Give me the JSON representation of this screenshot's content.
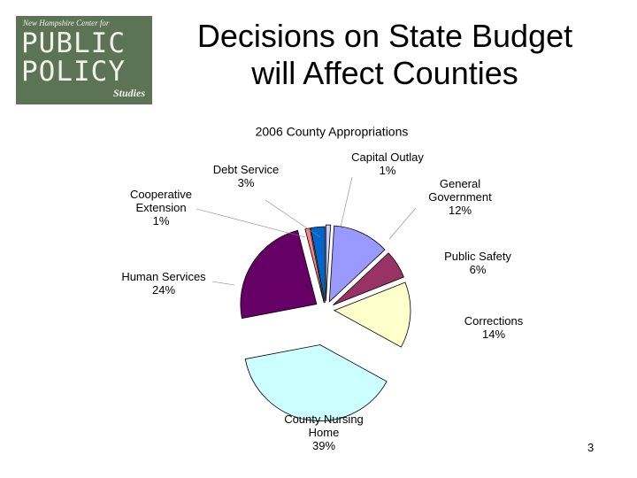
{
  "logo": {
    "line1": "New Hampshire Center for",
    "line2": "PUBLIC",
    "line3": "POLICY",
    "line4": "Studies"
  },
  "title": "Decisions on State Budget will Affect Counties",
  "page_number": 3,
  "chart_data": {
    "type": "pie",
    "title": "2006 County Appropriations",
    "categories": [
      "Capital Outlay",
      "General Government",
      "Public Safety",
      "Corrections",
      "County Nursing Home",
      "Human Services",
      "Cooperative Extension",
      "Debt Service"
    ],
    "values": [
      1,
      12,
      6,
      14,
      39,
      24,
      1,
      3
    ],
    "value_labels": [
      "1%",
      "12%",
      "6%",
      "14%",
      "39%",
      "24%",
      "1%",
      "3%"
    ],
    "colors": [
      "#ccccff",
      "#9999ff",
      "#993366",
      "#ffffcc",
      "#ccffff",
      "#660066",
      "#ff8080",
      "#0066cc"
    ]
  }
}
